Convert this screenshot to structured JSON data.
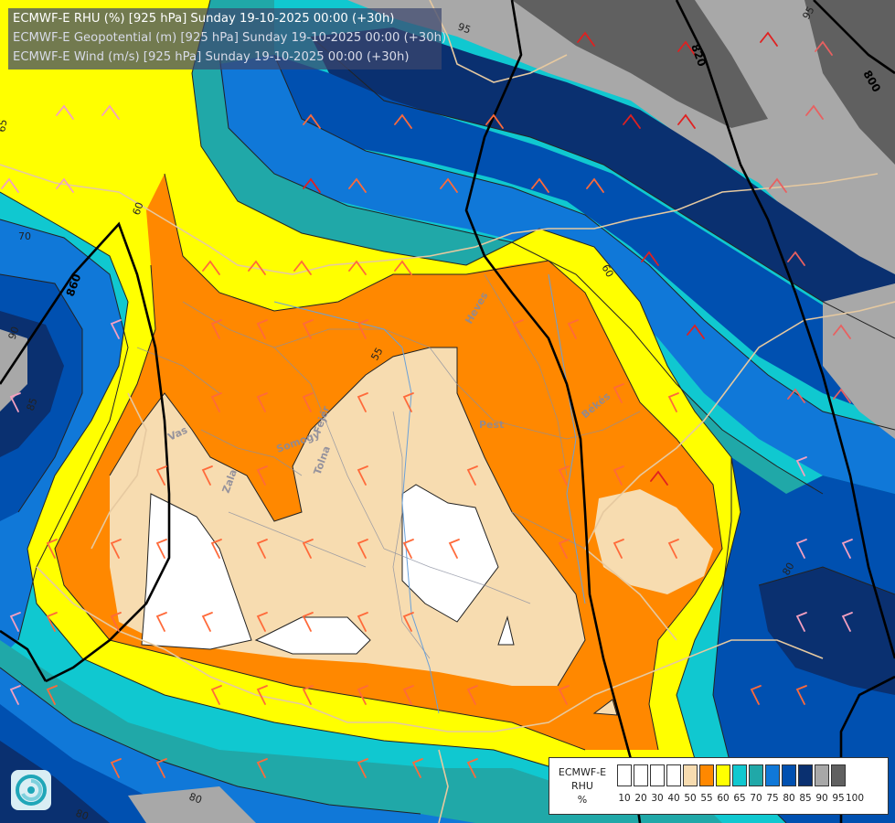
{
  "title": {
    "line1": "ECMWF-E RHU (%) [925 hPa] Sunday 19-10-2025 00:00 (+30h)",
    "line2": "ECMWF-E Geopotential (m) [925 hPa] Sunday 19-10-2025 00:00 (+30h)",
    "line3": "ECMWF-E Wind (m/s) [925 hPa] Sunday 19-10-2025 00:00 (+30h)"
  },
  "legend": {
    "title_lines": [
      "ECMWF-E",
      "RHU",
      "%"
    ],
    "swatches": [
      {
        "label": "10",
        "color": "#ffffff"
      },
      {
        "label": "20",
        "color": "#ffffff"
      },
      {
        "label": "30",
        "color": "#ffffff"
      },
      {
        "label": "40",
        "color": "#ffffff"
      },
      {
        "label": "50",
        "color": "#f7dcb0"
      },
      {
        "label": "55",
        "color": "#ff8800"
      },
      {
        "label": "60",
        "color": "#ffff00"
      },
      {
        "label": "65",
        "color": "#10c8d0"
      },
      {
        "label": "70",
        "color": "#20a8a8"
      },
      {
        "label": "75",
        "color": "#1078d8"
      },
      {
        "label": "80",
        "color": "#0050b0"
      },
      {
        "label": "85",
        "color": "#0a3070"
      },
      {
        "label": "90",
        "color": "#a8a8a8"
      },
      {
        "label": "95",
        "color": "#606060"
      },
      {
        "label": "100",
        "color": ""
      }
    ]
  },
  "contour_labels": {
    "rh_55": "55",
    "rh_60_a": "60",
    "rh_60_b": "60",
    "rh_65": "65",
    "rh_70": "70",
    "rh_80_a": "80",
    "rh_80_b": "80",
    "rh_80_c": "80",
    "rh_85": "85",
    "rh_90": "90",
    "rh_95_a": "95",
    "rh_95_b": "95",
    "gp_800": "800",
    "gp_820": "820",
    "gp_860": "860"
  },
  "place_labels": {
    "vas": "Vas",
    "zala": "Zala",
    "somogy": "Somogy",
    "tolna": "Tolna",
    "fejer": "Fejér",
    "pest": "Pest",
    "heves": "Heves",
    "bekes": "Békés"
  }
}
